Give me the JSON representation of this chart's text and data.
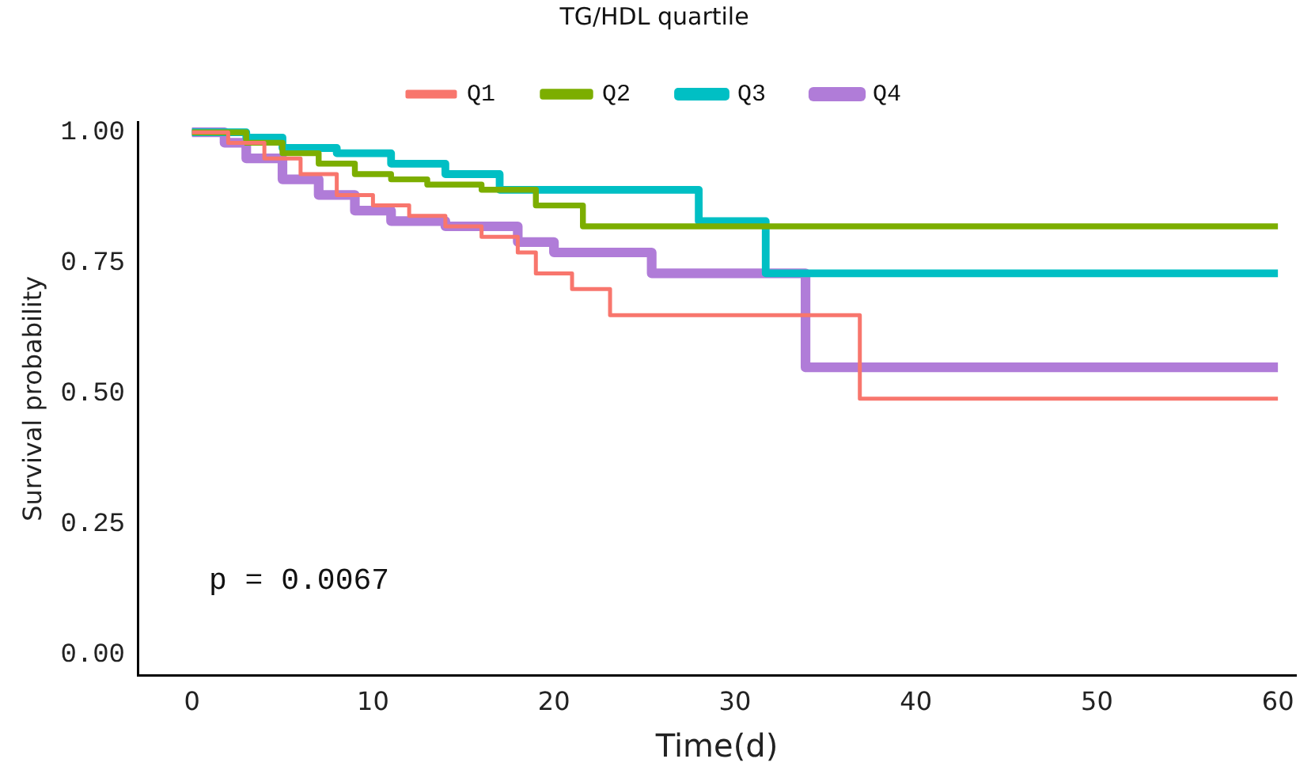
{
  "chart_data": {
    "type": "step",
    "xlabel": "Time(d)",
    "ylabel": "Survival probability",
    "legend_title": "TG/HDL quartile",
    "legend": "top",
    "xlim": [
      -3,
      61
    ],
    "xticks": [
      0,
      10,
      20,
      30,
      40,
      50,
      60
    ],
    "ylim": [
      -0.04,
      1.02
    ],
    "yticks": [
      {
        "value": 0,
        "label": "0.00"
      },
      {
        "value": 0.25,
        "label": "0.25"
      },
      {
        "value": 0.5,
        "label": "0.50"
      },
      {
        "value": 0.75,
        "label": "0.75"
      },
      {
        "value": 1,
        "label": "1.00"
      }
    ],
    "grid": false,
    "annotations": [
      "p = 0.0067"
    ],
    "series": [
      {
        "name": "Q1",
        "color": "#f8766d",
        "x": [
          0,
          2,
          4,
          6,
          8,
          10,
          12,
          14,
          16,
          18,
          19,
          21,
          23.1,
          36.9,
          60
        ],
        "values": [
          1,
          0.98,
          0.95,
          0.92,
          0.88,
          0.86,
          0.84,
          0.82,
          0.8,
          0.77,
          0.73,
          0.7,
          0.65,
          0.49,
          0.49
        ]
      },
      {
        "name": "Q2",
        "color": "#7cae00",
        "x": [
          0,
          3,
          5,
          7,
          9,
          11,
          13,
          16,
          19,
          21.6,
          60
        ],
        "values": [
          1,
          0.98,
          0.96,
          0.94,
          0.92,
          0.91,
          0.9,
          0.89,
          0.86,
          0.82,
          0.82
        ]
      },
      {
        "name": "Q3",
        "color": "#00bfc4",
        "x": [
          0,
          3,
          5,
          8,
          11,
          14,
          17,
          28,
          31.7,
          60
        ],
        "values": [
          1,
          0.99,
          0.97,
          0.96,
          0.94,
          0.92,
          0.89,
          0.83,
          0.73,
          0.73
        ]
      },
      {
        "name": "Q4",
        "color": "#b07cd8",
        "x": [
          0,
          1.8,
          3,
          5,
          7,
          9,
          11,
          14,
          18,
          20,
          25.4,
          33.9,
          60
        ],
        "values": [
          1,
          0.98,
          0.95,
          0.91,
          0.88,
          0.85,
          0.83,
          0.82,
          0.79,
          0.77,
          0.73,
          0.55,
          0.55
        ]
      }
    ]
  }
}
